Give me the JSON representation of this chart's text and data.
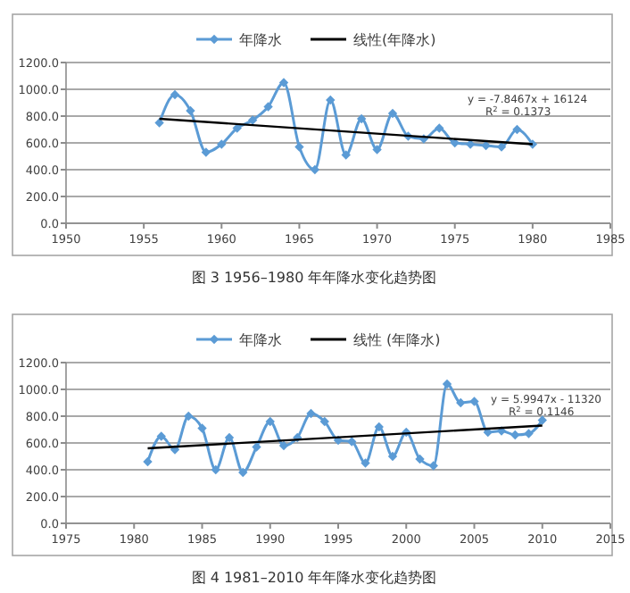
{
  "chart_data": [
    {
      "type": "line",
      "x": [
        1956,
        1957,
        1958,
        1959,
        1960,
        1961,
        1962,
        1963,
        1964,
        1965,
        1966,
        1967,
        1968,
        1969,
        1970,
        1971,
        1972,
        1973,
        1974,
        1975,
        1976,
        1977,
        1978,
        1979,
        1980
      ],
      "series": [
        {
          "name": "年降水",
          "color": "#5b9bd5",
          "marker": "diamond",
          "values": [
            750,
            960,
            840,
            530,
            590,
            710,
            770,
            870,
            1050,
            570,
            400,
            920,
            510,
            780,
            550,
            820,
            650,
            630,
            710,
            600,
            590,
            580,
            570,
            700,
            590
          ]
        },
        {
          "name": "线性(年降水)",
          "type": "line",
          "color": "#000000",
          "marker": "none",
          "x": [
            1956,
            1980
          ],
          "values": [
            780,
            590
          ]
        }
      ],
      "xlim": [
        1950,
        1985
      ],
      "xticks": [
        1950,
        1955,
        1960,
        1965,
        1970,
        1975,
        1980,
        1985
      ],
      "ylim": [
        0,
        1200
      ],
      "yticks": [
        {
          "value": 0,
          "label": "0.0"
        },
        {
          "value": 200,
          "label": "200.0"
        },
        {
          "value": 400,
          "label": "400.0"
        },
        {
          "value": 600,
          "label": "600.0"
        },
        {
          "value": 800,
          "label": "800.0"
        },
        {
          "value": 1000,
          "label": "1000.0"
        },
        {
          "value": 1200,
          "label": "1200.0"
        }
      ],
      "grid": "y",
      "legend": "top",
      "annotations": [
        "y = -7.8467x + 16124",
        "R$^{2}$ = 0.1373",
        "图 3    1956–1980 年年降水变化趋势图"
      ]
    },
    {
      "type": "line",
      "x": [
        1981,
        1982,
        1983,
        1984,
        1985,
        1986,
        1987,
        1988,
        1989,
        1990,
        1991,
        1992,
        1993,
        1994,
        1995,
        1996,
        1997,
        1998,
        1999,
        2000,
        2001,
        2002,
        2003,
        2004,
        2005,
        2006,
        2007,
        2008,
        2009,
        2010
      ],
      "series": [
        {
          "name": "年降水",
          "color": "#5b9bd5",
          "marker": "diamond",
          "values": [
            460,
            650,
            550,
            800,
            710,
            400,
            640,
            380,
            570,
            760,
            580,
            640,
            820,
            760,
            620,
            610,
            450,
            720,
            500,
            680,
            480,
            430,
            1040,
            900,
            910,
            680,
            690,
            660,
            670,
            770
          ]
        },
        {
          "name": "线性 (年降水)",
          "type": "line",
          "color": "#000000",
          "marker": "none",
          "x": [
            1981,
            2010
          ],
          "values": [
            560,
            730
          ]
        }
      ],
      "xlim": [
        1975,
        2015
      ],
      "xticks": [
        1975,
        1980,
        1985,
        1990,
        1995,
        2000,
        2005,
        2010,
        2015
      ],
      "ylim": [
        0,
        1200
      ],
      "yticks": [
        {
          "value": 0,
          "label": "0.0"
        },
        {
          "value": 200,
          "label": "200.0"
        },
        {
          "value": 400,
          "label": "400.0"
        },
        {
          "value": 600,
          "label": "600.0"
        },
        {
          "value": 800,
          "label": "800.0"
        },
        {
          "value": 1000,
          "label": "1000.0"
        },
        {
          "value": 1200,
          "label": "1200.0"
        }
      ],
      "grid": "y",
      "legend": "top",
      "annotations": [
        "y = 5.9947x - 11320",
        "R$^{2}$ = 0.1146",
        "图 4    1981–2010 年年降水变化趋势图"
      ]
    }
  ]
}
